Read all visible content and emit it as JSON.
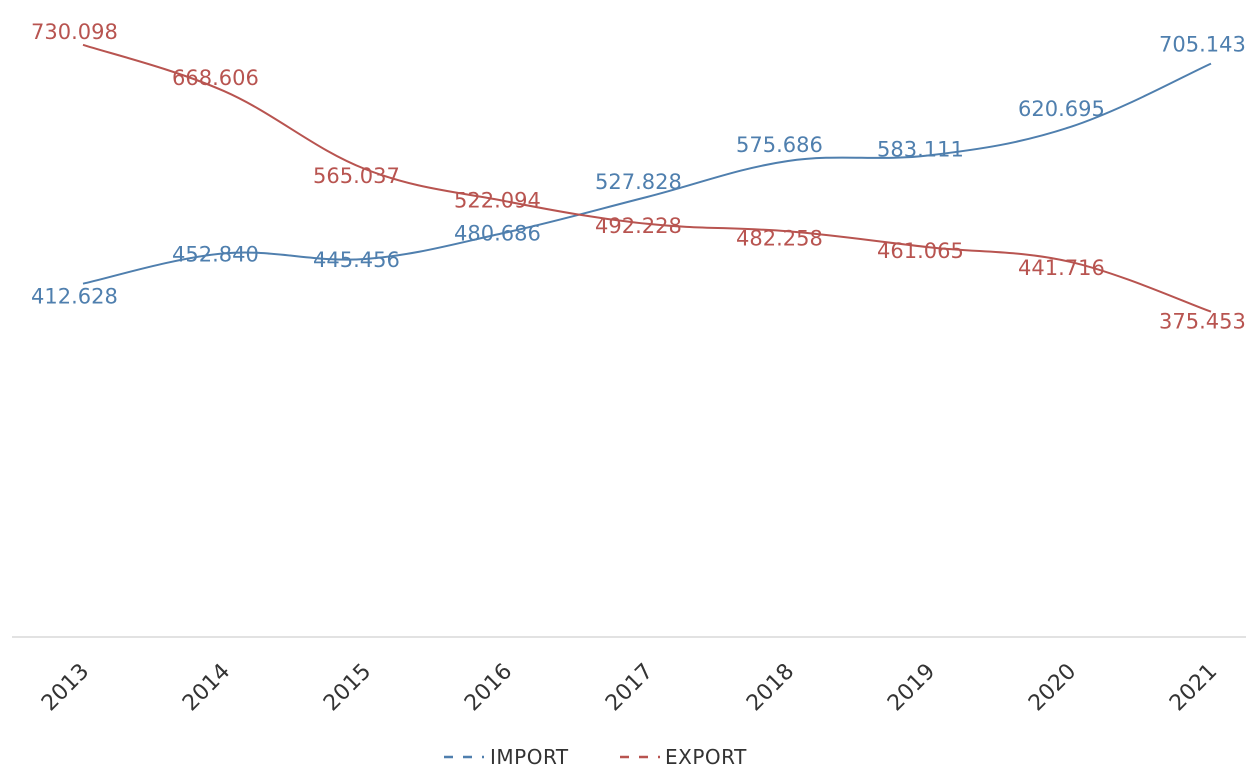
{
  "chart_data": {
    "type": "line",
    "title": "",
    "xlabel": "",
    "ylabel": "",
    "categories": [
      "2013",
      "2014",
      "2015",
      "2016",
      "2017",
      "2018",
      "2019",
      "2020",
      "2021"
    ],
    "series": [
      {
        "name": "IMPORT",
        "color": "#4F7FAE",
        "values": [
          412.628,
          452.84,
          445.456,
          480.686,
          527.828,
          575.686,
          583.111,
          620.695,
          705.143
        ],
        "labels": [
          "412.628",
          "452.840",
          "445.456",
          "480.686",
          "527.828",
          "575.686",
          "583.111",
          "620.695",
          "705.143"
        ]
      },
      {
        "name": "EXPORT",
        "color": "#B85450",
        "values": [
          730.098,
          668.606,
          565.037,
          522.094,
          492.228,
          482.258,
          461.065,
          441.716,
          375.453
        ],
        "labels": [
          "730.098",
          "668.606",
          "565.037",
          "522.094",
          "492.228",
          "482.258",
          "461.065",
          "441.716",
          "375.453"
        ]
      }
    ],
    "grid": false,
    "legend_position": "bottom"
  }
}
